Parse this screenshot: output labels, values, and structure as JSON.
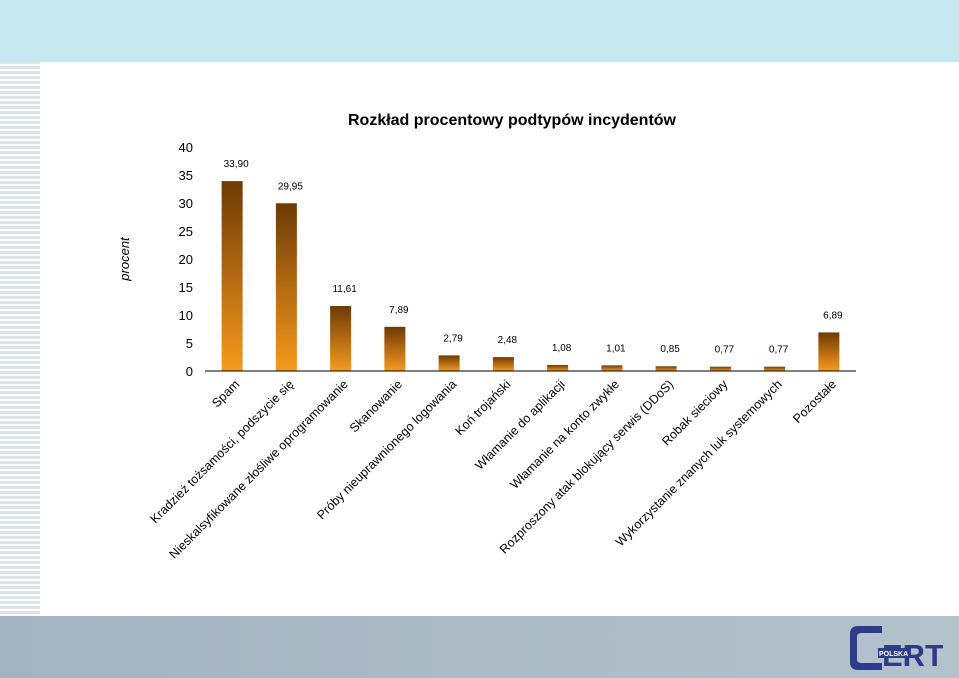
{
  "chart_data": {
    "type": "bar",
    "title": "Rozkład procentowy podtypów incydentów",
    "ylabel": "procent",
    "xlabel": "",
    "ylim": [
      0,
      40
    ],
    "yticks": [
      "0",
      "5",
      "10",
      "15",
      "20",
      "25",
      "30",
      "35",
      "40"
    ],
    "categories": [
      "Spam",
      "Kradzież tożsamości, podszycie się",
      "Nieskalsyfikowane złośliwe oprogramowanie",
      "Skanowanie",
      "Próby nieuprawnionego logowania",
      "Koń trojański",
      "Włamanie do aplikacji",
      "Włamanie na konto zwykłe",
      "Rozproszony atak blokujący serwis (DDoS)",
      "Robak sieciowy",
      "Wykorzystanie znanych luk systemowych",
      "Pozostałe"
    ],
    "values": [
      33.9,
      29.95,
      11.61,
      7.89,
      2.79,
      2.48,
      1.08,
      1.01,
      0.85,
      0.77,
      0.77,
      6.89
    ],
    "value_labels": [
      "33,90",
      "29,95",
      "11,61",
      "7,89",
      "2,79",
      "2,48",
      "1,08",
      "1,01",
      "0,85",
      "0,77",
      "0,77",
      "6,89"
    ],
    "bar_color_top": "#6e3a05",
    "bar_color_bottom": "#f79a1e",
    "grid": false,
    "legend": false
  },
  "logo": {
    "text_main": "ERT",
    "text_sub": "POLSKA",
    "color": "#2b3c8c"
  },
  "colors": {
    "top_band": "#c5e8ee",
    "bottom_band": "#a9b8c3"
  }
}
